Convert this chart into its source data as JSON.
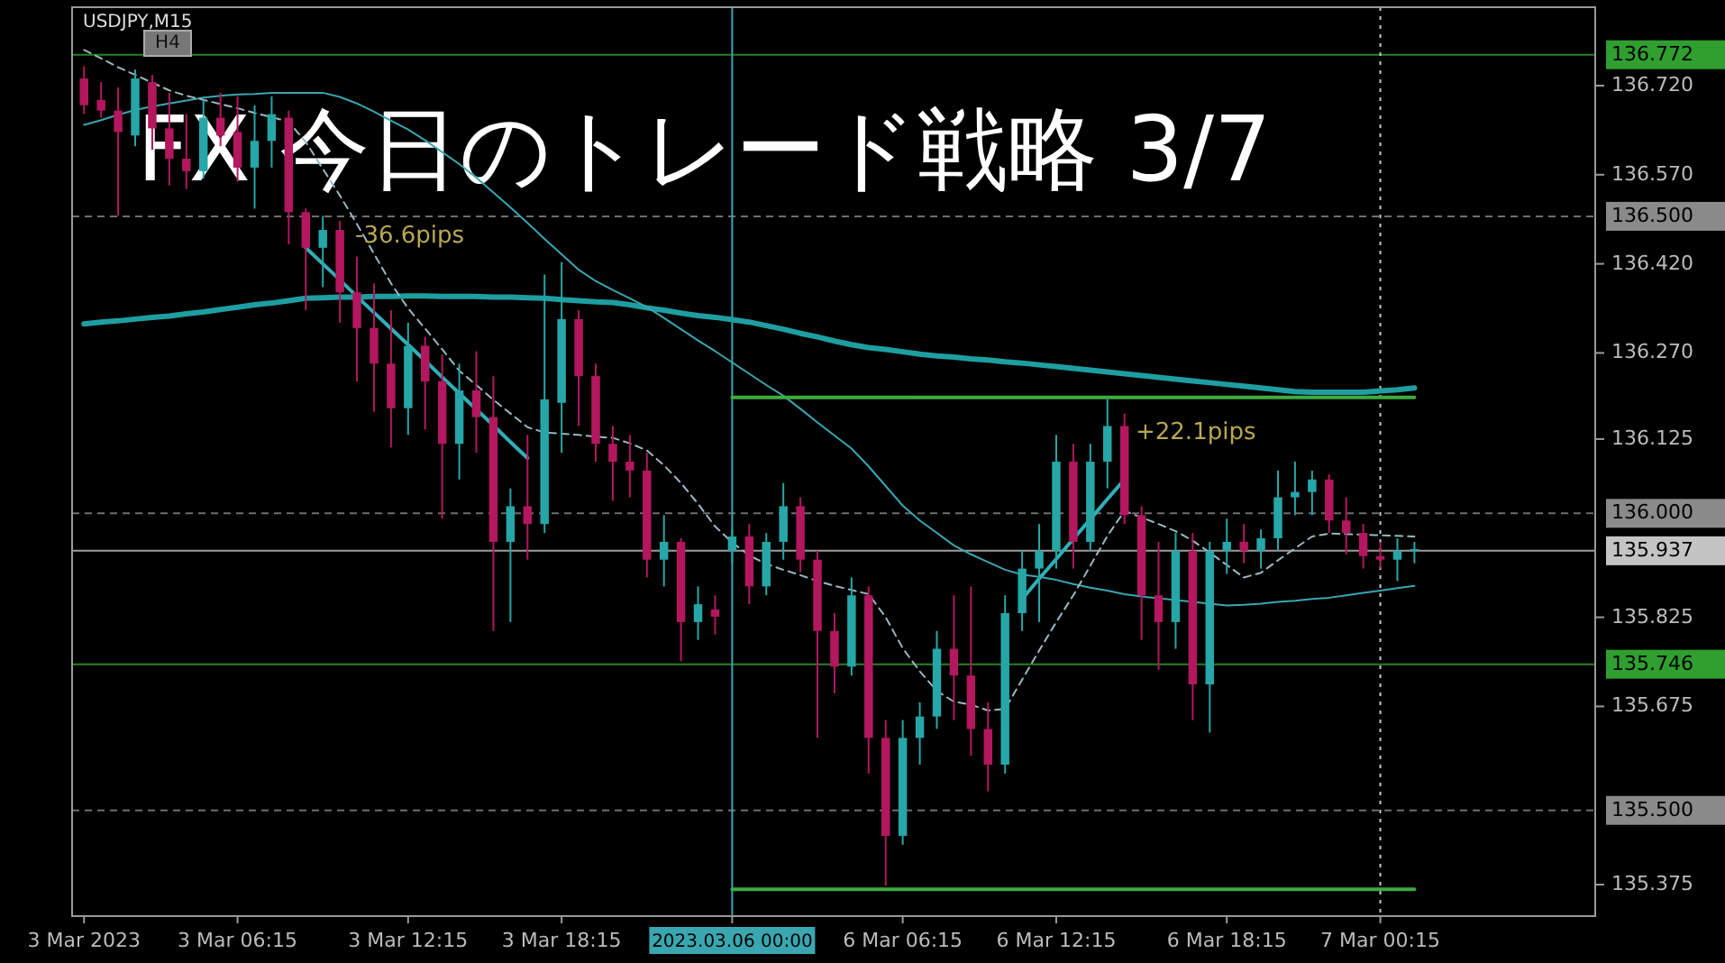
{
  "chart_data": {
    "type": "candlestick",
    "title": "USDJPY,M15",
    "subtitle": "FX 今日のトレード戦略 3/7",
    "categories": [
      "3 Mar 2023",
      null,
      null,
      null,
      null,
      null,
      null,
      null,
      null,
      "3 Mar 06:15",
      null,
      null,
      null,
      null,
      null,
      null,
      null,
      null,
      null,
      "3 Mar 12:15",
      null,
      null,
      null,
      null,
      null,
      null,
      null,
      null,
      "3 Mar 18:15",
      null,
      null,
      null,
      null,
      null,
      null,
      null,
      null,
      null,
      "2023.03.06 00:00",
      null,
      null,
      null,
      null,
      null,
      null,
      null,
      null,
      null,
      "6 Mar 06:15",
      null,
      null,
      null,
      null,
      null,
      null,
      null,
      null,
      "6 Mar 12:15",
      null,
      null,
      null,
      null,
      null,
      null,
      null,
      null,
      null,
      "6 Mar 18:15",
      null,
      null,
      null,
      null,
      null,
      null,
      null,
      null,
      "7 Mar 00:15",
      null,
      null
    ],
    "ohlc": [
      [
        136.732,
        136.753,
        136.672,
        136.687
      ],
      [
        136.696,
        136.726,
        136.666,
        136.678
      ],
      [
        136.678,
        136.717,
        136.501,
        136.642
      ],
      [
        136.636,
        136.747,
        136.618,
        136.732
      ],
      [
        136.726,
        136.738,
        136.612,
        136.648
      ],
      [
        136.648,
        136.708,
        136.552,
        136.597
      ],
      [
        136.597,
        136.672,
        136.546,
        136.576
      ],
      [
        136.576,
        136.696,
        136.564,
        136.666
      ],
      [
        136.666,
        136.708,
        136.618,
        136.636
      ],
      [
        136.642,
        136.702,
        136.558,
        136.582
      ],
      [
        136.582,
        136.687,
        136.513,
        136.627
      ],
      [
        136.627,
        136.702,
        136.582,
        136.672
      ],
      [
        136.666,
        136.678,
        136.453,
        136.507
      ],
      [
        136.507,
        136.513,
        136.342,
        136.447
      ],
      [
        136.447,
        136.501,
        136.381,
        136.477
      ],
      [
        136.477,
        136.492,
        136.321,
        136.372
      ],
      [
        136.372,
        136.432,
        136.222,
        136.312
      ],
      [
        136.312,
        136.387,
        136.171,
        136.252
      ],
      [
        136.252,
        136.342,
        136.111,
        136.177
      ],
      [
        136.177,
        136.321,
        136.132,
        136.282
      ],
      [
        136.282,
        136.297,
        136.141,
        136.222
      ],
      [
        136.222,
        136.267,
        135.991,
        136.117
      ],
      [
        136.117,
        136.252,
        136.057,
        136.207
      ],
      [
        136.207,
        136.273,
        136.102,
        136.162
      ],
      [
        136.162,
        136.231,
        135.802,
        135.952
      ],
      [
        135.952,
        136.042,
        135.817,
        136.012
      ],
      [
        136.012,
        136.132,
        135.922,
        135.982
      ],
      [
        135.982,
        136.402,
        135.967,
        136.192
      ],
      [
        136.186,
        136.423,
        136.102,
        136.327
      ],
      [
        136.327,
        136.342,
        136.147,
        136.231
      ],
      [
        136.231,
        136.252,
        136.087,
        136.117
      ],
      [
        136.117,
        136.147,
        136.021,
        136.087
      ],
      [
        136.087,
        136.132,
        136.027,
        136.072
      ],
      [
        136.072,
        136.102,
        135.892,
        135.922
      ],
      [
        135.922,
        135.997,
        135.877,
        135.952
      ],
      [
        135.952,
        135.958,
        135.751,
        135.817
      ],
      [
        135.817,
        135.877,
        135.787,
        135.847
      ],
      [
        135.838,
        135.862,
        135.796,
        135.826
      ],
      [
        135.937,
        135.973,
        135.916,
        135.961
      ],
      [
        135.961,
        135.982,
        135.847,
        135.877
      ],
      [
        135.877,
        135.967,
        135.862,
        135.952
      ],
      [
        135.952,
        136.051,
        135.922,
        136.012
      ],
      [
        136.012,
        136.027,
        135.901,
        135.922
      ],
      [
        135.922,
        135.937,
        135.622,
        135.802
      ],
      [
        135.802,
        135.832,
        135.697,
        135.742
      ],
      [
        135.742,
        135.892,
        135.727,
        135.862
      ],
      [
        135.862,
        135.877,
        135.562,
        135.622
      ],
      [
        135.622,
        135.652,
        135.373,
        135.457
      ],
      [
        135.457,
        135.652,
        135.442,
        135.622
      ],
      [
        135.622,
        135.682,
        135.577,
        135.658
      ],
      [
        135.658,
        135.802,
        135.637,
        135.772
      ],
      [
        135.772,
        135.862,
        135.652,
        135.727
      ],
      [
        135.727,
        135.877,
        135.592,
        135.637
      ],
      [
        135.637,
        135.682,
        135.532,
        135.577
      ],
      [
        135.577,
        135.862,
        135.562,
        135.832
      ],
      [
        135.832,
        135.937,
        135.802,
        135.907
      ],
      [
        135.907,
        135.982,
        135.817,
        135.937
      ],
      [
        135.937,
        136.132,
        135.907,
        136.087
      ],
      [
        136.087,
        136.117,
        135.907,
        135.952
      ],
      [
        135.952,
        136.117,
        135.937,
        136.087
      ],
      [
        136.087,
        136.192,
        136.042,
        136.147
      ],
      [
        136.147,
        136.168,
        135.982,
        135.997
      ],
      [
        135.997,
        136.012,
        135.787,
        135.862
      ],
      [
        135.862,
        135.952,
        135.736,
        135.817
      ],
      [
        135.817,
        135.967,
        135.772,
        135.937
      ],
      [
        135.937,
        135.967,
        135.652,
        135.712
      ],
      [
        135.712,
        135.952,
        135.631,
        135.937
      ],
      [
        135.937,
        135.991,
        135.898,
        135.952
      ],
      [
        135.952,
        135.982,
        135.916,
        135.937
      ],
      [
        135.937,
        135.973,
        135.907,
        135.958
      ],
      [
        135.958,
        136.072,
        135.937,
        136.027
      ],
      [
        136.027,
        136.087,
        135.997,
        136.036
      ],
      [
        136.036,
        136.072,
        135.997,
        136.057
      ],
      [
        136.057,
        136.066,
        135.967,
        135.988
      ],
      [
        135.988,
        136.027,
        135.931,
        135.967
      ],
      [
        135.967,
        135.982,
        135.907,
        135.928
      ],
      [
        135.928,
        135.952,
        135.907,
        135.922
      ],
      [
        135.922,
        135.958,
        135.886,
        135.937
      ],
      [
        135.937,
        135.952,
        135.916,
        135.94
      ]
    ],
    "colors": [
      "#b3175e",
      "#b3175e",
      "#b3175e",
      "#26a6a6",
      "#b3175e",
      "#b3175e",
      "#b3175e",
      "#26a6a6",
      "#b3175e",
      "#b3175e",
      "#26a6a6",
      "#26a6a6",
      "#b3175e",
      "#b3175e",
      "#26a6a6",
      "#b3175e",
      "#b3175e",
      "#b3175e",
      "#b3175e",
      "#26a6a6",
      "#b3175e",
      "#b3175e",
      "#26a6a6",
      "#b3175e",
      "#b3175e",
      "#26a6a6",
      "#b3175e",
      "#26a6a6",
      "#26a6a6",
      "#b3175e",
      "#b3175e",
      "#b3175e",
      "#b3175e",
      "#b3175e",
      "#26a6a6",
      "#b3175e",
      "#26a6a6",
      "#b3175e",
      "#26a6a6",
      "#b3175e",
      "#26a6a6",
      "#26a6a6",
      "#b3175e",
      "#b3175e",
      "#b3175e",
      "#26a6a6",
      "#b3175e",
      "#b3175e",
      "#26a6a6",
      "#26a6a6",
      "#26a6a6",
      "#b3175e",
      "#b3175e",
      "#b3175e",
      "#26a6a6",
      "#26a6a6",
      "#26a6a6",
      "#26a6a6",
      "#b3175e",
      "#26a6a6",
      "#26a6a6",
      "#b3175e",
      "#b3175e",
      "#b3175e",
      "#26a6a6",
      "#b3175e",
      "#26a6a6",
      "#26a6a6",
      "#b3175e",
      "#26a6a6",
      "#26a6a6",
      "#26a6a6",
      "#26a6a6",
      "#b3175e",
      "#b3175e",
      "#b3175e",
      "#b3175e",
      "#26a6a6",
      "#26a6a6"
    ],
    "series": [
      {
        "type": "line",
        "color": "#1e9ea0",
        "line_style": "solid",
        "values": [
          136.319,
          136.322,
          136.324,
          136.327,
          136.33,
          136.332,
          136.336,
          136.339,
          136.343,
          136.347,
          136.351,
          136.354,
          136.358,
          136.362,
          136.363,
          136.364,
          136.364,
          136.365,
          136.365,
          136.366,
          136.366,
          136.365,
          136.365,
          136.365,
          136.364,
          136.364,
          136.363,
          136.362,
          136.36,
          136.358,
          136.356,
          136.355,
          136.351,
          136.346,
          136.342,
          136.337,
          136.333,
          136.33,
          136.326,
          136.322,
          136.316,
          136.31,
          136.303,
          136.297,
          136.29,
          136.284,
          136.279,
          136.276,
          136.272,
          136.268,
          136.265,
          136.263,
          136.26,
          136.258,
          136.255,
          136.253,
          136.25,
          136.247,
          136.244,
          136.241,
          136.238,
          136.235,
          136.232,
          136.229,
          136.226,
          136.223,
          136.22,
          136.217,
          136.214,
          136.211,
          136.208,
          136.205,
          136.204,
          136.204,
          136.204,
          136.204,
          136.206,
          136.208,
          136.211
        ]
      },
      {
        "type": "line",
        "color": "#3aa6b0",
        "line_style": "solid",
        "values": [
          136.654,
          136.662,
          136.671,
          136.679,
          136.685,
          136.69,
          136.695,
          136.7,
          136.703,
          136.705,
          136.706,
          136.708,
          136.708,
          136.708,
          136.708,
          136.701,
          136.69,
          136.676,
          136.661,
          136.646,
          136.628,
          136.608,
          136.588,
          136.565,
          136.54,
          136.515,
          136.489,
          136.462,
          136.436,
          136.41,
          136.391,
          136.376,
          136.362,
          136.347,
          136.329,
          136.31,
          136.291,
          136.273,
          136.254,
          136.235,
          136.216,
          136.198,
          136.176,
          136.153,
          136.131,
          136.109,
          136.079,
          136.046,
          136.013,
          135.988,
          135.967,
          135.946,
          135.931,
          135.918,
          135.905,
          135.897,
          135.893,
          135.888,
          135.881,
          135.875,
          135.87,
          135.864,
          135.86,
          135.857,
          135.854,
          135.851,
          135.848,
          135.845,
          135.846,
          135.848,
          135.851,
          135.853,
          135.856,
          135.858,
          135.862,
          135.866,
          135.87,
          135.874,
          135.878
        ]
      },
      {
        "type": "line",
        "color": "#9ab8c0",
        "line_style": "dashed",
        "values": [
          136.78,
          136.766,
          136.751,
          136.738,
          136.725,
          136.712,
          136.703,
          136.696,
          136.689,
          136.682,
          136.674,
          136.667,
          136.659,
          136.625,
          136.58,
          136.535,
          136.487,
          136.437,
          136.387,
          136.345,
          136.311,
          136.276,
          136.24,
          136.216,
          136.191,
          136.168,
          136.145,
          136.136,
          136.134,
          136.132,
          136.129,
          136.127,
          136.118,
          136.106,
          136.081,
          136.051,
          136.016,
          135.978,
          135.951,
          135.929,
          135.915,
          135.905,
          135.896,
          135.886,
          135.878,
          135.871,
          135.864,
          135.825,
          135.773,
          135.734,
          135.701,
          135.683,
          135.678,
          135.668,
          135.671,
          135.72,
          135.769,
          135.817,
          135.862,
          135.912,
          135.962,
          136.004,
          135.993,
          135.982,
          135.97,
          135.954,
          135.934,
          135.913,
          135.892,
          135.9,
          135.921,
          135.941,
          135.961,
          135.966,
          135.965,
          135.964,
          135.963,
          135.962,
          135.961
        ]
      },
      {
        "type": "line",
        "color": "#2fb0b8",
        "line_style": "solid",
        "values": [
          null,
          null,
          null,
          null,
          null,
          null,
          null,
          null,
          null,
          null,
          null,
          null,
          null,
          136.447,
          136.42,
          136.393,
          136.365,
          136.338,
          136.311,
          136.284,
          136.257,
          136.229,
          136.202,
          136.175,
          136.148,
          136.12,
          136.093,
          null,
          null,
          null,
          null,
          null,
          null,
          null,
          null,
          null,
          null,
          null,
          null,
          null,
          null,
          null,
          null,
          null,
          null,
          null,
          null,
          null,
          null,
          null,
          null,
          null,
          null,
          null,
          null,
          null,
          null,
          null,
          null,
          null,
          null,
          null,
          null,
          null,
          null,
          null,
          null,
          null,
          null,
          null,
          null,
          null,
          null,
          null,
          null,
          null,
          null,
          null,
          null
        ]
      },
      {
        "type": "line",
        "color": "#2fb0b8",
        "line_style": "solid",
        "values": [
          null,
          null,
          null,
          null,
          null,
          null,
          null,
          null,
          null,
          null,
          null,
          null,
          null,
          null,
          null,
          null,
          null,
          null,
          null,
          null,
          null,
          null,
          null,
          null,
          null,
          null,
          null,
          null,
          null,
          null,
          null,
          null,
          null,
          null,
          null,
          null,
          null,
          null,
          null,
          null,
          null,
          null,
          null,
          null,
          null,
          null,
          null,
          null,
          null,
          null,
          null,
          null,
          null,
          null,
          null,
          135.856,
          135.89,
          135.923,
          135.957,
          135.99,
          136.024,
          136.057,
          null,
          null,
          null,
          null,
          null,
          null,
          null,
          null,
          null,
          null,
          null,
          null,
          null,
          null,
          null,
          null,
          null
        ]
      },
      {
        "type": "line",
        "color": "#3faa3f",
        "line_style": "solid",
        "values": [
          null,
          null,
          null,
          null,
          null,
          null,
          null,
          null,
          null,
          null,
          null,
          null,
          null,
          null,
          null,
          null,
          null,
          null,
          null,
          null,
          null,
          null,
          null,
          null,
          null,
          null,
          null,
          null,
          null,
          null,
          null,
          null,
          null,
          null,
          null,
          null,
          null,
          null,
          136.195,
          136.195,
          136.195,
          136.195,
          136.195,
          136.195,
          136.195,
          136.195,
          136.195,
          136.195,
          136.195,
          136.195,
          136.195,
          136.195,
          136.195,
          136.195,
          136.195,
          136.195,
          136.195,
          136.195,
          136.195,
          136.195,
          136.195,
          136.195,
          136.195,
          136.195,
          136.195,
          136.195,
          136.195,
          136.195,
          136.195,
          136.195,
          136.195,
          136.195,
          136.195,
          136.195,
          136.195,
          136.195,
          136.195,
          136.195,
          136.195
        ]
      },
      {
        "type": "line",
        "color": "#3faa3f",
        "line_style": "solid",
        "values": [
          null,
          null,
          null,
          null,
          null,
          null,
          null,
          null,
          null,
          null,
          null,
          null,
          null,
          null,
          null,
          null,
          null,
          null,
          null,
          null,
          null,
          null,
          null,
          null,
          null,
          null,
          null,
          null,
          null,
          null,
          null,
          null,
          null,
          null,
          null,
          null,
          null,
          null,
          135.367,
          135.367,
          135.367,
          135.367,
          135.367,
          135.367,
          135.367,
          135.367,
          135.367,
          135.367,
          135.367,
          135.367,
          135.367,
          135.367,
          135.367,
          135.367,
          135.367,
          135.367,
          135.367,
          135.367,
          135.367,
          135.367,
          135.367,
          135.367,
          135.367,
          135.367,
          135.367,
          135.367,
          135.367,
          135.367,
          135.367,
          135.367,
          135.367,
          135.367,
          135.367,
          135.367,
          135.367,
          135.367,
          135.367,
          135.367,
          135.367
        ]
      }
    ],
    "ylim": [
      135.322,
      136.852
    ],
    "yticks": [
      {
        "value": 136.72,
        "label": "136.720"
      },
      {
        "value": 136.57,
        "label": "136.570"
      },
      {
        "value": 136.42,
        "label": "136.420"
      },
      {
        "value": 136.27,
        "label": "136.270"
      },
      {
        "value": 136.125,
        "label": "136.125"
      },
      {
        "value": 135.825,
        "label": "135.825"
      },
      {
        "value": 135.675,
        "label": "135.675"
      },
      {
        "value": 135.375,
        "label": "135.375"
      }
    ],
    "ref_lines": [
      {
        "axis": "y",
        "value": 136.772,
        "label": "136.772",
        "color": "#2fa02f",
        "line_style": "solid"
      },
      {
        "axis": "y",
        "value": 136.5,
        "label": "136.500",
        "color": "#8a8a8a",
        "line_style": "dashed"
      },
      {
        "axis": "y",
        "value": 136.0,
        "label": "136.000",
        "color": "#8a8a8a",
        "line_style": "dashed"
      },
      {
        "axis": "y",
        "value": 135.937,
        "label": "135.937",
        "color": "#c4c4c4",
        "line_style": "solid"
      },
      {
        "axis": "y",
        "value": 135.746,
        "label": "135.746",
        "color": "#2fa02f",
        "line_style": "solid"
      },
      {
        "axis": "y",
        "value": 135.5,
        "label": "135.500",
        "color": "#8a8a8a",
        "line_style": "dashed"
      },
      {
        "axis": "x",
        "value": "2023.03.06 00:00",
        "color": "#3aa6b0",
        "line_style": "solid"
      },
      {
        "axis": "x",
        "value": "7 Mar 00:15",
        "color": "#c8c8c8",
        "line_style": "dotted"
      }
    ],
    "annotations": [
      "H4",
      "-36.6pips",
      "+22.1pips"
    ],
    "grid": false
  }
}
